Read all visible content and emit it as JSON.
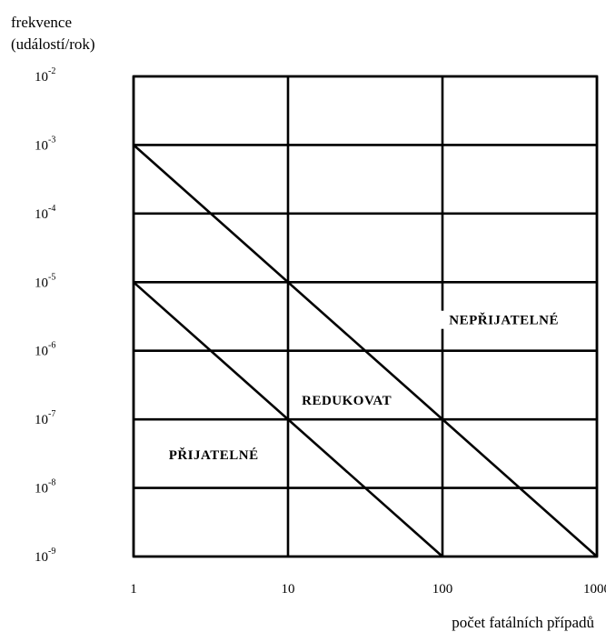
{
  "chart_data": {
    "type": "line",
    "ylabel": [
      "frekvence",
      "(událostí/rok)"
    ],
    "xlabel": "počet fatálních případů",
    "x_scale": "log",
    "y_scale": "log",
    "xlim": [
      1,
      1000
    ],
    "ylim": [
      1e-09,
      0.01
    ],
    "x_ticks": [
      {
        "value": 1,
        "label": "1"
      },
      {
        "value": 10,
        "label": "10"
      },
      {
        "value": 100,
        "label": "100"
      },
      {
        "value": 1000,
        "label": "1000"
      }
    ],
    "y_ticks": [
      {
        "value": 0.01,
        "base": "10",
        "exp": "-2"
      },
      {
        "value": 0.001,
        "base": "10",
        "exp": "-3"
      },
      {
        "value": 0.0001,
        "base": "10",
        "exp": "-4"
      },
      {
        "value": 1e-05,
        "base": "10",
        "exp": "-5"
      },
      {
        "value": 1e-06,
        "base": "10",
        "exp": "-6"
      },
      {
        "value": 1e-07,
        "base": "10",
        "exp": "-7"
      },
      {
        "value": 1e-08,
        "base": "10",
        "exp": "-8"
      },
      {
        "value": 1e-09,
        "base": "10",
        "exp": "-9"
      }
    ],
    "grid": true,
    "series": [
      {
        "x": [
          1,
          1000
        ],
        "y": [
          0.001,
          1e-09
        ]
      },
      {
        "x": [
          1,
          100
        ],
        "y": [
          1e-05,
          1e-09
        ]
      }
    ],
    "regions": [
      {
        "label": "NEPŘIJATELNÉ",
        "x": 250,
        "y": 2.5e-06
      },
      {
        "label": "REDUKOVAT",
        "x": 24,
        "y": 1.7e-07
      },
      {
        "label": "PŘIJATELNÉ",
        "x": 3.3,
        "y": 2.7e-08
      }
    ]
  }
}
